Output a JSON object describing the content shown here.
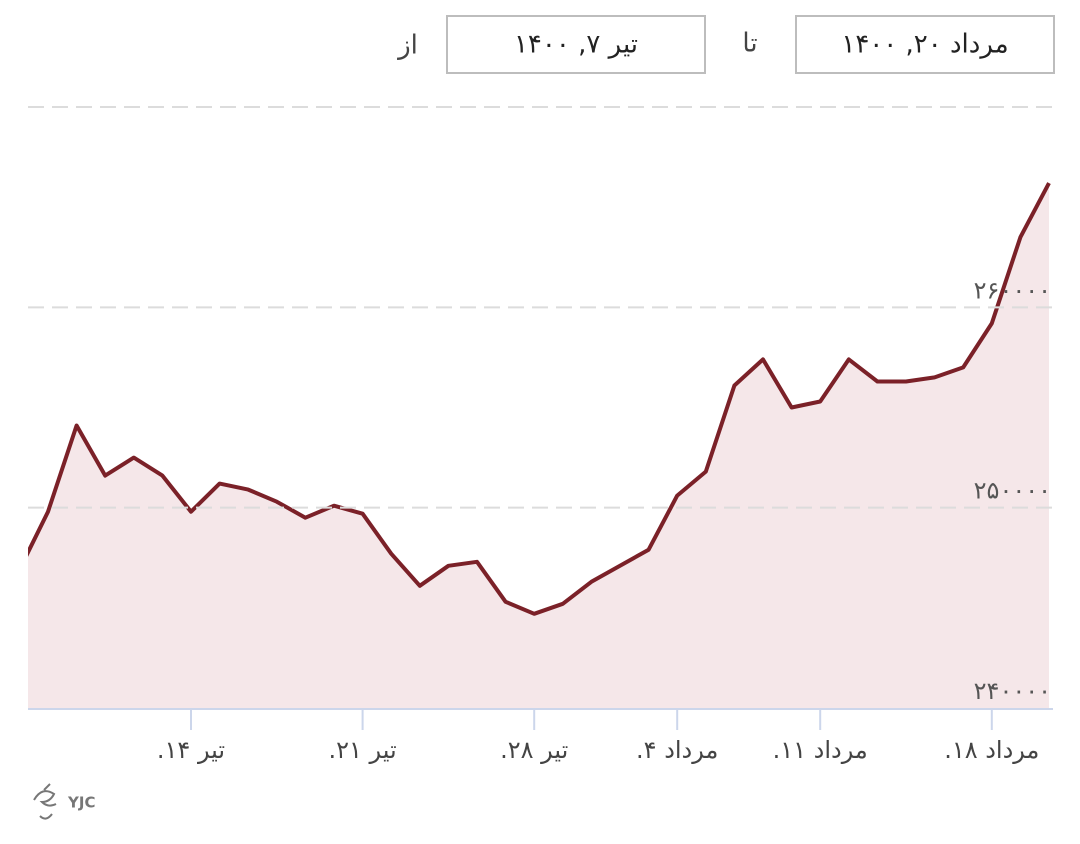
{
  "range": {
    "from_label": "از",
    "from": "تیر ۷, ۱۴۰۰",
    "to_label": "تا",
    "to": "مرداد ۲۰, ۱۴۰۰"
  },
  "watermark": "YJC",
  "chart_data": {
    "type": "area",
    "categories": [
      null,
      null,
      null,
      null,
      null,
      null,
      "تیر ۱۴.",
      null,
      null,
      null,
      null,
      null,
      "تیر ۲۱.",
      null,
      null,
      null,
      null,
      null,
      "تیر ۲۸.",
      null,
      null,
      null,
      null,
      "مرداد ۴.",
      null,
      null,
      null,
      null,
      "مرداد ۱۱.",
      null,
      null,
      null,
      null,
      null,
      "مرداد ۱۸.",
      null,
      null
    ],
    "values": [
      246900,
      249800,
      254100,
      251600,
      252500,
      251600,
      249800,
      251200,
      250900,
      250300,
      249500,
      250100,
      249700,
      247700,
      246100,
      247100,
      247300,
      245300,
      244700,
      245200,
      246300,
      247100,
      247900,
      250600,
      251800,
      256100,
      257400,
      255000,
      255300,
      257400,
      256300,
      256300,
      256500,
      257000,
      259200,
      263500,
      266200
    ],
    "color": "#7b2128",
    "fill_color": "#f5e7e9",
    "ylim": [
      240000,
      270000
    ],
    "yticks": [
      {
        "value": 240000,
        "label": "۲۴۰۰۰۰"
      },
      {
        "value": 250000,
        "label": "۲۵۰۰۰۰"
      },
      {
        "value": 260000,
        "label": "۲۶۰۰۰۰"
      }
    ],
    "grid": true
  }
}
